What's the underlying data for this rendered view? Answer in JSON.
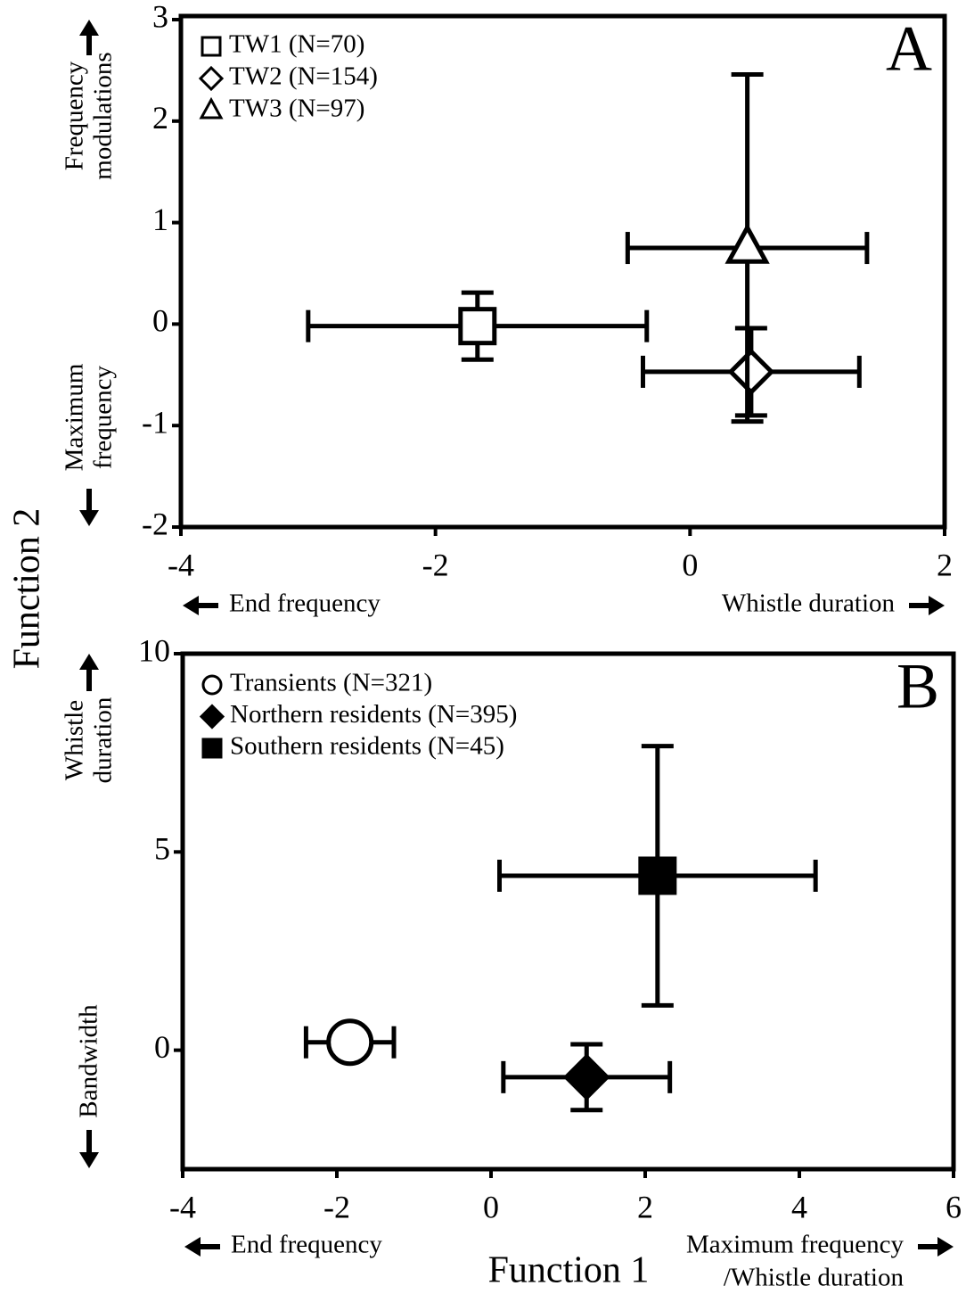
{
  "chart_data": [
    {
      "type": "scatter",
      "panel_label": "A",
      "y_label": "Function 2",
      "xlim": [
        -4,
        2
      ],
      "xticks": [
        -4,
        -2,
        0,
        2
      ],
      "ylim": [
        -2,
        3
      ],
      "yticks": [
        -2,
        -1,
        0,
        1,
        2,
        3
      ],
      "x_direction_labels": {
        "left": [
          "End frequency"
        ],
        "right": [
          "Whistle duration"
        ]
      },
      "y_direction_labels": {
        "top": [
          "Frequency",
          "modulations"
        ],
        "bottom": [
          "Maximum",
          "frequency"
        ]
      },
      "series": [
        {
          "name": "TW1 (N=70)",
          "marker": "square",
          "color": "#000000",
          "fill": "#ffffff",
          "x": [
            -1.67
          ],
          "values": [
            -0.02
          ],
          "xerr": [
            1.33
          ],
          "yerr": [
            0.33
          ]
        },
        {
          "name": "TW2 (N=154)",
          "marker": "diamond",
          "color": "#000000",
          "fill": "#ffffff",
          "x": [
            0.48
          ],
          "values": [
            -0.47
          ],
          "xerr": [
            0.85
          ],
          "yerr": [
            0.43
          ]
        },
        {
          "name": "TW3 (N=97)",
          "marker": "triangle",
          "color": "#000000",
          "fill": "#ffffff",
          "x": [
            0.45
          ],
          "values": [
            0.75
          ],
          "xerr": [
            0.94
          ],
          "yerr": [
            1.71
          ]
        }
      ]
    },
    {
      "type": "scatter",
      "panel_label": "B",
      "x_label": "Function 1",
      "xlim": [
        -4,
        6
      ],
      "xticks": [
        -4,
        -2,
        0,
        2,
        4,
        6
      ],
      "ylim": [
        -3,
        10
      ],
      "yticks": [
        0,
        5,
        10
      ],
      "x_direction_labels": {
        "left": [
          "End frequency"
        ],
        "right": [
          "Maximum frequency",
          "/Whistle duration"
        ]
      },
      "y_direction_labels": {
        "top": [
          "Whistle",
          "duration"
        ],
        "bottom": [
          "Bandwidth"
        ]
      },
      "series": [
        {
          "name": "Transients (N=321)",
          "marker": "circle",
          "color": "#000000",
          "fill": "#ffffff",
          "x": [
            -1.83
          ],
          "values": [
            0.2
          ],
          "xerr": [
            0.57
          ],
          "yerr": [
            0
          ]
        },
        {
          "name": "Northern residents (N=395)",
          "marker": "diamond",
          "color": "#000000",
          "fill": "#000000",
          "x": [
            1.24
          ],
          "values": [
            -0.68
          ],
          "xerr": [
            1.08
          ],
          "yerr": [
            0.83
          ]
        },
        {
          "name": "Southern residents (N=45)",
          "marker": "square",
          "color": "#000000",
          "fill": "#000000",
          "x": [
            2.16
          ],
          "values": [
            4.4
          ],
          "xerr": [
            2.05
          ],
          "yerr": [
            3.27
          ]
        }
      ]
    }
  ]
}
